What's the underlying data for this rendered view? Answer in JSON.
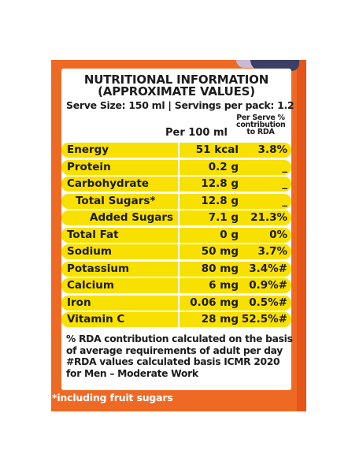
{
  "title_line1": "NUTRITIONAL INFORMATION",
  "title_line2": "(APPROXIMATE VALUES)",
  "serve_info": "Serve Size: 150 ml | Servings per pack: 1.2",
  "header_per100": "Per 100 ml",
  "header_rda_line1": "Per Serve %",
  "header_rda_line2": "contribution",
  "header_rda_line3": "to RDA",
  "rows": [
    {
      "name": "Energy",
      "value": "51 kcal",
      "rda": "3.8%",
      "indent": 0
    },
    {
      "name": "Protein",
      "value": "0.2 g",
      "rda": "_",
      "indent": 0
    },
    {
      "name": "Carbohydrate",
      "value": "12.8 g",
      "rda": "_",
      "indent": 0
    },
    {
      "name": "Total Sugars*",
      "value": "12.8 g",
      "rda": "_",
      "indent": 1
    },
    {
      "name": "Added Sugars",
      "value": "7.1 g",
      "rda": "21.3%",
      "indent": 2
    },
    {
      "name": "Total Fat",
      "value": "0 g",
      "rda": "0%",
      "indent": 0
    },
    {
      "name": "Sodium",
      "value": "50 mg",
      "rda": "3.7%",
      "indent": 0
    },
    {
      "name": "Potassium",
      "value": "80 mg",
      "rda": "3.4%#",
      "indent": 0
    },
    {
      "name": "Calcium",
      "value": "6 mg",
      "rda": "0.9%#",
      "indent": 0
    },
    {
      "name": "Iron",
      "value": "0.06 mg",
      "rda": "0.5%#",
      "indent": 0
    },
    {
      "name": "Vitamin C",
      "value": "28 mg",
      "rda": "52.5%#",
      "indent": 0
    }
  ],
  "note1": "% RDA contribution calculated on the basis",
  "note2": "of average requirements of adult per day",
  "note3": "#RDA values calculated basis ICMR 2020",
  "note4": "for Men – Moderate Work",
  "footer": "*including fruit sugars",
  "colors": {
    "panel": "#ee6a24",
    "row": "#f8e000",
    "card": "#ffffff"
  }
}
